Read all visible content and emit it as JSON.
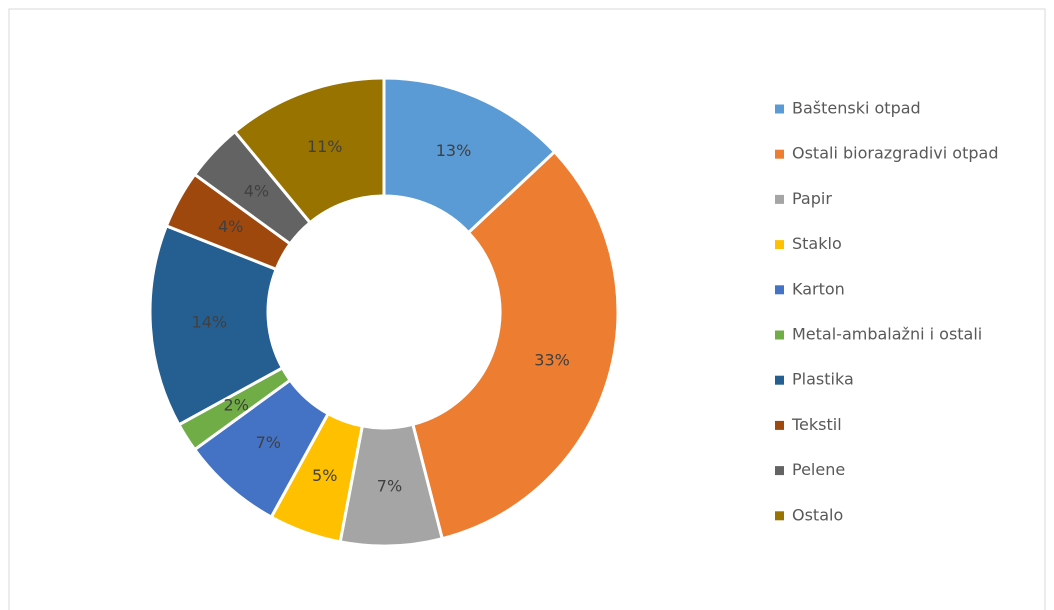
{
  "chart_data": {
    "type": "donut",
    "categories": [
      "Baštenski otpad",
      "Ostali biorazgradivi otpad",
      "Papir",
      "Staklo",
      "Karton",
      "Metal-ambalažni i ostali",
      "Plastika",
      "Tekstil",
      "Pelene",
      "Ostalo"
    ],
    "values": [
      13,
      33,
      7,
      5,
      7,
      2,
      14,
      4,
      4,
      11
    ],
    "value_labels": [
      "13%",
      "33%",
      "7%",
      "5%",
      "7%",
      "2%",
      "14%",
      "4%",
      "4%",
      "11%"
    ],
    "colors": [
      "#5b9bd5",
      "#ed7d31",
      "#a5a5a5",
      "#ffc000",
      "#4472c4",
      "#70ad47",
      "#255e91",
      "#9e480e",
      "#636363",
      "#997300"
    ],
    "legend": "right"
  }
}
